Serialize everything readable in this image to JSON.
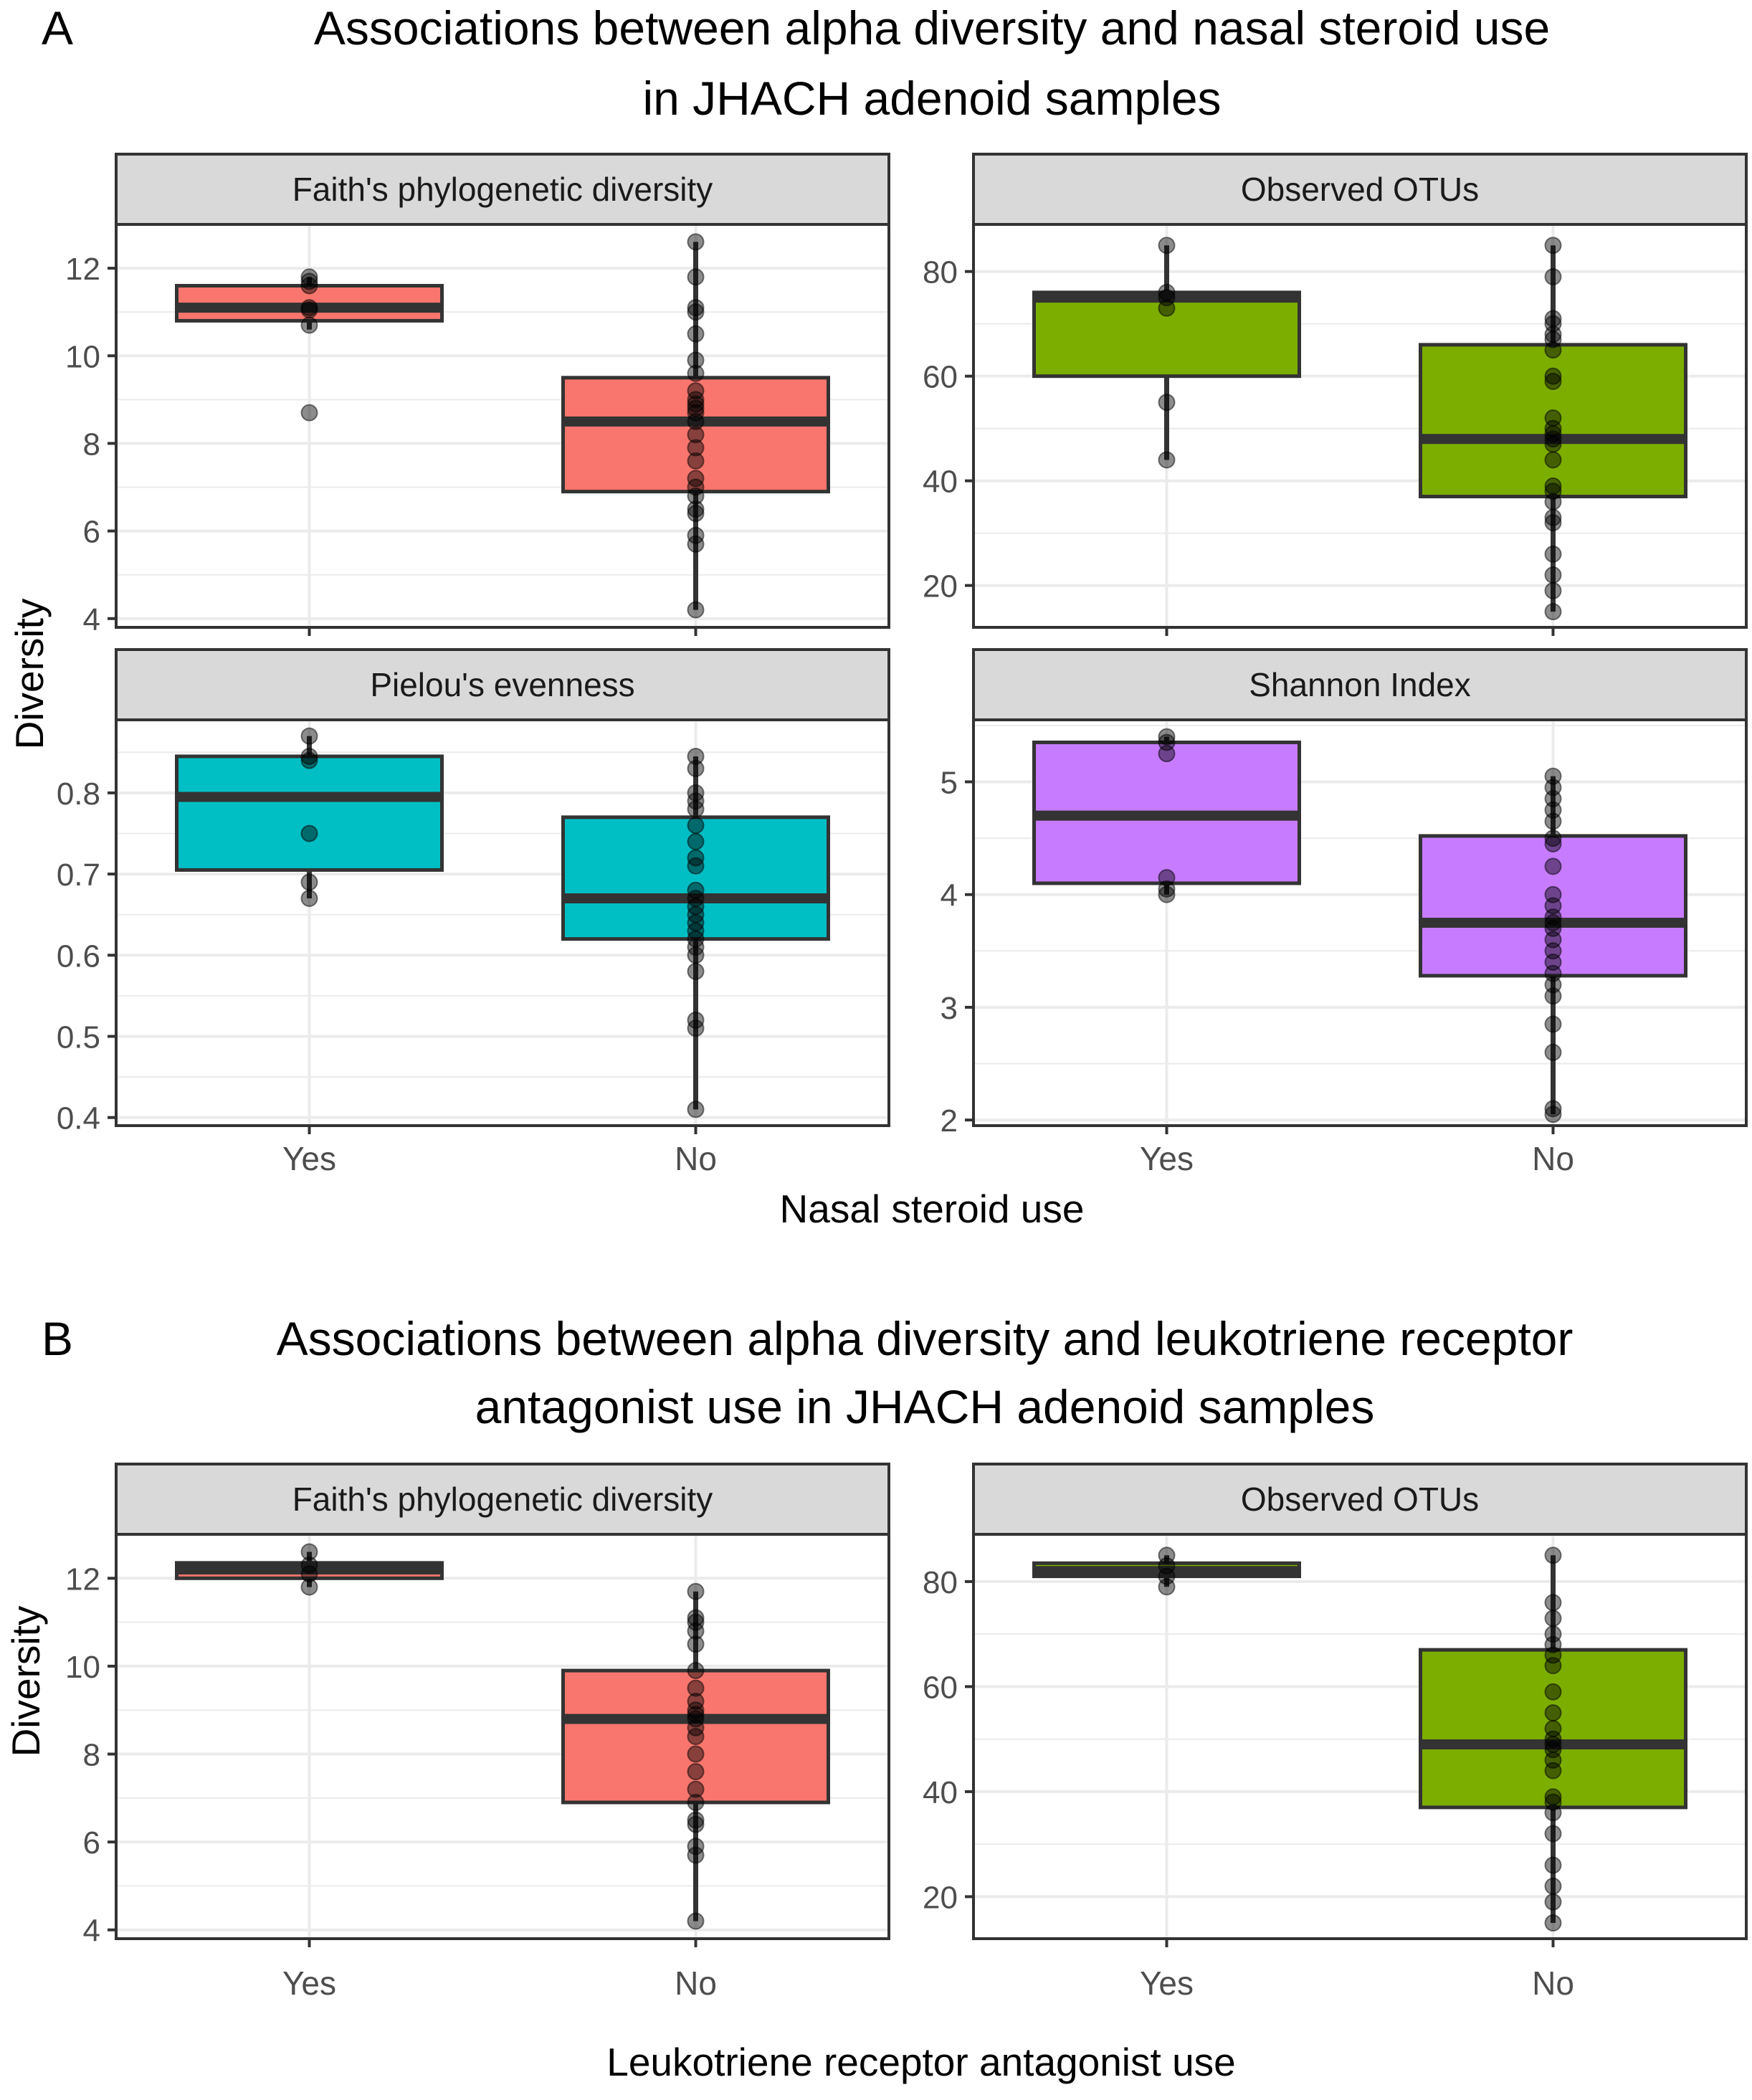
{
  "figure": {
    "panel_a": {
      "letter": "A",
      "title_line1": "Associations between alpha diversity and nasal steroid use",
      "title_line2": "in JHACH adenoid samples",
      "xlabel": "Nasal steroid use",
      "ylabel": "Diversity"
    },
    "panel_b": {
      "letter": "B",
      "title_line1": "Associations between alpha diversity and leukotriene receptor",
      "title_line2": "antagonist use in JHACH adenoid samples",
      "xlabel": "Leukotriene receptor antagonist use",
      "ylabel": "Diversity"
    }
  },
  "colors": {
    "faith": "#F8766D",
    "otus": "#7CAE00",
    "pielou": "#00BFC4",
    "shannon": "#C77CFF",
    "strip_bg": "#D9D9D9",
    "grid": "#EBEBEB",
    "border": "#333333"
  },
  "chart_data": [
    {
      "id": "a-faith",
      "type": "box",
      "title": "Faith's phylogenetic diversity",
      "xlabel": "Nasal steroid use",
      "ylabel": "Diversity",
      "categories": [
        "Yes",
        "No"
      ],
      "ylim": [
        3.8,
        13.0
      ],
      "yticks": [
        4,
        6,
        8,
        10,
        12
      ],
      "color_key": "faith",
      "boxes": [
        {
          "category": "Yes",
          "q1": 10.8,
          "median": 11.1,
          "q3": 11.6,
          "whisker_low": 10.6,
          "whisker_high": 11.8,
          "points": [
            11.8,
            11.7,
            11.6,
            11.1,
            11.05,
            10.7,
            8.7
          ]
        },
        {
          "category": "No",
          "q1": 6.9,
          "median": 8.5,
          "q3": 9.5,
          "whisker_low": 4.2,
          "whisker_high": 12.6,
          "points": [
            12.6,
            11.8,
            11.1,
            11.0,
            10.5,
            9.9,
            9.6,
            9.2,
            9.0,
            8.9,
            8.8,
            8.7,
            8.5,
            8.2,
            7.9,
            7.6,
            7.2,
            7.0,
            6.8,
            6.5,
            6.4,
            5.9,
            5.7,
            4.2
          ]
        }
      ]
    },
    {
      "id": "a-otus",
      "type": "box",
      "title": "Observed OTUs",
      "xlabel": "Nasal steroid use",
      "ylabel": "Diversity",
      "categories": [
        "Yes",
        "No"
      ],
      "ylim": [
        12,
        89
      ],
      "yticks": [
        20,
        40,
        60,
        80
      ],
      "color_key": "otus",
      "boxes": [
        {
          "category": "Yes",
          "q1": 60,
          "median": 75,
          "q3": 76,
          "whisker_low": 44,
          "whisker_high": 85,
          "points": [
            85,
            76,
            75,
            73,
            55,
            44
          ]
        },
        {
          "category": "No",
          "q1": 37,
          "median": 48,
          "q3": 66,
          "whisker_low": 15,
          "whisker_high": 85,
          "points": [
            85,
            79,
            71,
            70,
            68,
            67,
            65,
            60,
            59,
            52,
            50,
            49,
            48,
            47,
            44,
            39,
            38,
            36,
            33,
            32,
            26,
            22,
            19,
            15
          ]
        }
      ]
    },
    {
      "id": "a-pielou",
      "type": "box",
      "title": "Pielou's evenness",
      "xlabel": "Nasal steroid use",
      "ylabel": "Diversity",
      "categories": [
        "Yes",
        "No"
      ],
      "ylim": [
        0.39,
        0.89
      ],
      "yticks": [
        0.4,
        0.5,
        0.6,
        0.7,
        0.8
      ],
      "color_key": "pielou",
      "boxes": [
        {
          "category": "Yes",
          "q1": 0.705,
          "median": 0.795,
          "q3": 0.845,
          "whisker_low": 0.67,
          "whisker_high": 0.87,
          "points": [
            0.87,
            0.845,
            0.84,
            0.75,
            0.69,
            0.67
          ]
        },
        {
          "category": "No",
          "q1": 0.62,
          "median": 0.67,
          "q3": 0.77,
          "whisker_low": 0.41,
          "whisker_high": 0.845,
          "points": [
            0.845,
            0.83,
            0.8,
            0.79,
            0.78,
            0.76,
            0.74,
            0.72,
            0.71,
            0.68,
            0.67,
            0.66,
            0.65,
            0.64,
            0.63,
            0.62,
            0.61,
            0.6,
            0.58,
            0.52,
            0.51,
            0.41
          ]
        }
      ]
    },
    {
      "id": "a-shannon",
      "type": "box",
      "title": "Shannon Index",
      "xlabel": "Nasal steroid use",
      "ylabel": "Diversity",
      "categories": [
        "Yes",
        "No"
      ],
      "ylim": [
        1.95,
        5.55
      ],
      "yticks": [
        2,
        3,
        4,
        5
      ],
      "color_key": "shannon",
      "boxes": [
        {
          "category": "Yes",
          "q1": 4.1,
          "median": 4.7,
          "q3": 5.35,
          "whisker_low": 4.0,
          "whisker_high": 5.4,
          "points": [
            5.4,
            5.35,
            5.25,
            4.15,
            4.05,
            4.0
          ]
        },
        {
          "category": "No",
          "q1": 3.28,
          "median": 3.75,
          "q3": 4.52,
          "whisker_low": 2.05,
          "whisker_high": 5.05,
          "points": [
            5.05,
            4.95,
            4.85,
            4.75,
            4.65,
            4.5,
            4.45,
            4.25,
            4.0,
            3.9,
            3.8,
            3.75,
            3.7,
            3.6,
            3.5,
            3.4,
            3.3,
            3.2,
            3.1,
            2.85,
            2.6,
            2.1,
            2.05
          ]
        }
      ]
    },
    {
      "id": "b-faith",
      "type": "box",
      "title": "Faith's phylogenetic diversity",
      "xlabel": "Leukotriene receptor antagonist use",
      "ylabel": "Diversity",
      "categories": [
        "Yes",
        "No"
      ],
      "ylim": [
        3.8,
        13.0
      ],
      "yticks": [
        4,
        6,
        8,
        10,
        12
      ],
      "color_key": "faith",
      "boxes": [
        {
          "category": "Yes",
          "q1": 12.0,
          "median": 12.2,
          "q3": 12.35,
          "whisker_low": 11.8,
          "whisker_high": 12.6,
          "points": [
            12.6,
            12.3,
            12.1,
            11.8
          ]
        },
        {
          "category": "No",
          "q1": 6.9,
          "median": 8.8,
          "q3": 9.9,
          "whisker_low": 4.2,
          "whisker_high": 11.7,
          "points": [
            11.7,
            11.1,
            11.0,
            10.8,
            10.5,
            9.9,
            9.5,
            9.2,
            9.0,
            8.9,
            8.8,
            8.6,
            8.4,
            8.0,
            7.6,
            7.2,
            6.9,
            6.5,
            6.4,
            5.9,
            5.7,
            4.2
          ]
        }
      ]
    },
    {
      "id": "b-otus",
      "type": "box",
      "title": "Observed OTUs",
      "xlabel": "Leukotriene receptor antagonist use",
      "ylabel": "Diversity",
      "categories": [
        "Yes",
        "No"
      ],
      "ylim": [
        12,
        89
      ],
      "yticks": [
        20,
        40,
        60,
        80
      ],
      "color_key": "otus",
      "boxes": [
        {
          "category": "Yes",
          "q1": 81,
          "median": 82,
          "q3": 83.5,
          "whisker_low": 79,
          "whisker_high": 85,
          "points": [
            85,
            83,
            81,
            79
          ]
        },
        {
          "category": "No",
          "q1": 37,
          "median": 49,
          "q3": 67,
          "whisker_low": 15,
          "whisker_high": 85,
          "points": [
            85,
            76,
            73,
            70,
            68,
            66,
            64,
            59,
            55,
            52,
            50,
            49,
            48,
            46,
            44,
            39,
            38,
            36,
            32,
            26,
            22,
            19,
            15
          ]
        }
      ]
    }
  ]
}
